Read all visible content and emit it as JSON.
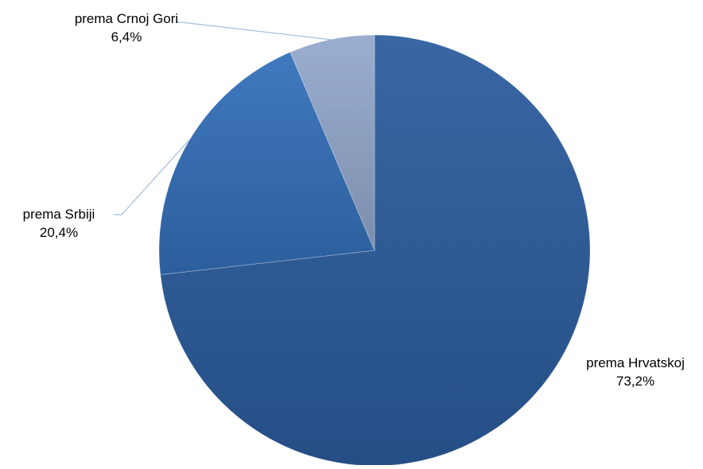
{
  "chart_data": {
    "type": "pie",
    "title": "",
    "slices": [
      {
        "label": "prema Hrvatskoj",
        "value": 73.2,
        "value_text": "73,2%",
        "color": "#2c5d9e"
      },
      {
        "label": "prema Srbiji",
        "value": 20.4,
        "value_text": "20,4%",
        "color": "#3470ba"
      },
      {
        "label": "prema Crnoj Gori",
        "value": 6.4,
        "value_text": "6,4%",
        "color": "#94a9cd"
      }
    ],
    "start_angle": "12 o'clock",
    "direction": "clockwise",
    "legend": "none",
    "data_labels": "outside with leader lines",
    "leader_line_color": "#a4bcdc"
  }
}
